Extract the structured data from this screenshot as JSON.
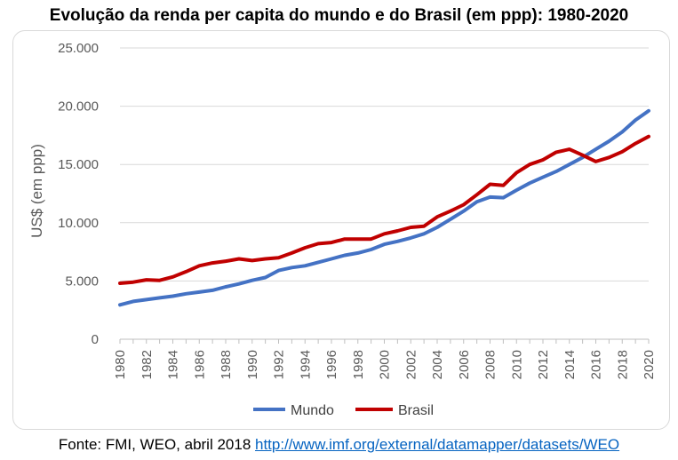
{
  "chart_data": {
    "type": "line",
    "title": "Evolução da renda per capita do mundo e do Brasil (em ppp): 1980-2020",
    "xlabel": "",
    "ylabel": "US$ (em ppp)",
    "x": [
      1980,
      1981,
      1982,
      1983,
      1984,
      1985,
      1986,
      1987,
      1988,
      1989,
      1990,
      1991,
      1992,
      1993,
      1994,
      1995,
      1996,
      1997,
      1998,
      1999,
      2000,
      2001,
      2002,
      2003,
      2004,
      2005,
      2006,
      2007,
      2008,
      2009,
      2010,
      2011,
      2012,
      2013,
      2014,
      2015,
      2016,
      2017,
      2018,
      2019,
      2020
    ],
    "x_tick_labels": [
      "1980",
      "1982",
      "1984",
      "1986",
      "1988",
      "1990",
      "1992",
      "1994",
      "1996",
      "1998",
      "2000",
      "2002",
      "2004",
      "2006",
      "2008",
      "2010",
      "2012",
      "2014",
      "2016",
      "2018",
      "2020"
    ],
    "xlim": [
      1980,
      2020
    ],
    "ylim": [
      0,
      25000
    ],
    "y_ticks": [
      0,
      5000,
      10000,
      15000,
      20000,
      25000
    ],
    "y_tick_labels": [
      "0",
      "5.000",
      "10.000",
      "15.000",
      "20.000",
      "25.000"
    ],
    "grid": "horizontal",
    "legend_position": "bottom",
    "series": [
      {
        "name": "Mundo",
        "color": "#4472c4",
        "values": [
          2950,
          3250,
          3400,
          3550,
          3700,
          3900,
          4050,
          4200,
          4500,
          4750,
          5050,
          5300,
          5900,
          6150,
          6300,
          6600,
          6900,
          7200,
          7400,
          7700,
          8150,
          8400,
          8700,
          9050,
          9600,
          10300,
          11000,
          11800,
          12200,
          12150,
          12800,
          13400,
          13900,
          14400,
          15000,
          15600,
          16300,
          17000,
          17800,
          18800,
          19600
        ]
      },
      {
        "name": "Brasil",
        "color": "#c00000",
        "values": [
          4800,
          4900,
          5100,
          5050,
          5350,
          5800,
          6300,
          6550,
          6700,
          6900,
          6750,
          6900,
          7000,
          7400,
          7850,
          8200,
          8300,
          8600,
          8600,
          8600,
          9050,
          9300,
          9600,
          9700,
          10500,
          11000,
          11550,
          12400,
          13300,
          13200,
          14300,
          15000,
          15400,
          16050,
          16300,
          15800,
          15250,
          15600,
          16100,
          16800,
          17400
        ]
      }
    ]
  },
  "source": {
    "prefix": "Fonte: FMI, WEO, abril 2018 ",
    "link_text": "http://www.imf.org/external/datamapper/datasets/WEO"
  }
}
